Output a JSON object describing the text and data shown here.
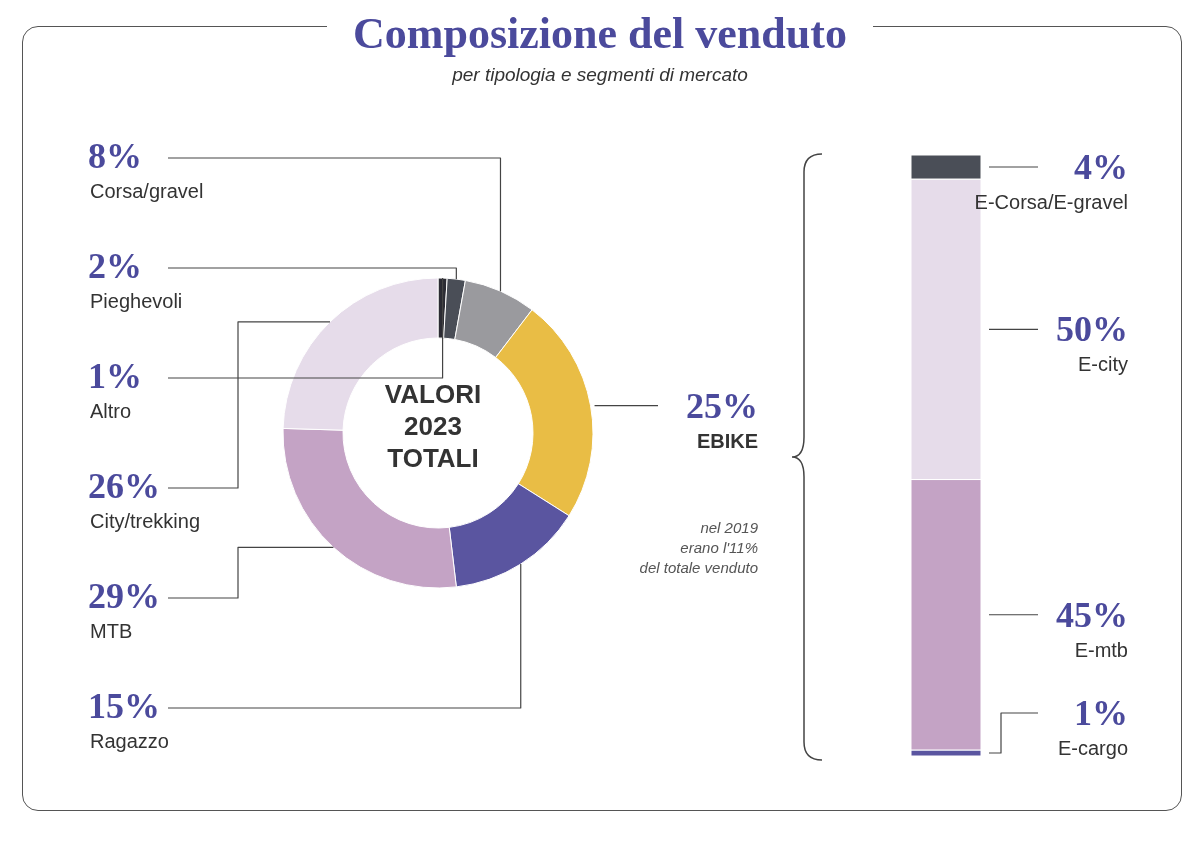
{
  "chart_data": [
    {
      "type": "donut",
      "title": "Composizione del venduto",
      "subtitle": "per tipologia e segmenti di mercato",
      "categories": [
        "Altro",
        "Pieghevoli",
        "Corsa/gravel",
        "EBIKE",
        "Ragazzo",
        "MTB",
        "City/trekking"
      ],
      "values": [
        1,
        2,
        8,
        25,
        15,
        29,
        26
      ],
      "colors": [
        "#2b2b33",
        "#4a4e57",
        "#9a9a9e",
        "#e9bd45",
        "#5a55a0",
        "#c4a3c5",
        "#e6dcea"
      ],
      "value_labels": [
        "1%",
        "2%",
        "8%",
        "25%",
        "15%",
        "29%",
        "26%"
      ],
      "annotations": [
        "VALORI\n2023\nTOTALI",
        "nel 2019\nerano l'11%\ndel totale venduto"
      ]
    },
    {
      "type": "bar",
      "stacked": true,
      "categories": [
        null
      ],
      "series": [
        {
          "name": "E-cargo",
          "color": "#5a55a0",
          "values": [
            1
          ],
          "value_labels": [
            "1%"
          ]
        },
        {
          "name": "E-mtb",
          "color": "#c4a3c5",
          "values": [
            45
          ],
          "value_labels": [
            "45%"
          ]
        },
        {
          "name": "E-city",
          "color": "#e6dcea",
          "values": [
            50
          ],
          "value_labels": [
            "50%"
          ]
        },
        {
          "name": "E-Corsa/E-gravel",
          "color": "#4a4e57",
          "values": [
            4
          ],
          "value_labels": [
            "4%"
          ]
        }
      ]
    }
  ]
}
